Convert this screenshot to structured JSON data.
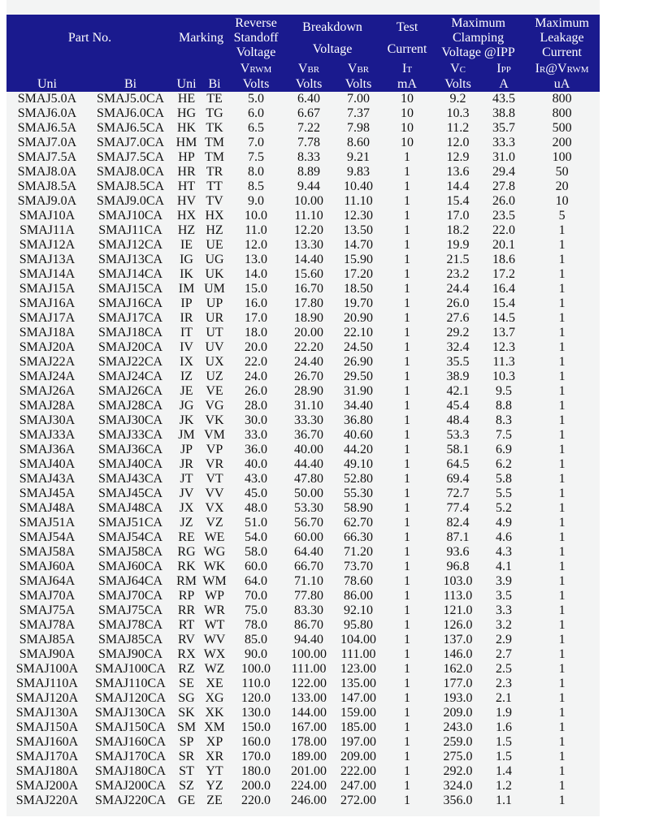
{
  "header": {
    "part_no": "Part No.",
    "marking": "Marking",
    "standoff": [
      "Reverse",
      "Standoff",
      "Voltage"
    ],
    "breakdown": [
      "Breakdown",
      "Voltage"
    ],
    "test": [
      "Test",
      "Current"
    ],
    "clamping": [
      "Maximum",
      "Clamping",
      "Voltage @IPP"
    ],
    "leakage": [
      "Maximum",
      "Leakage",
      "Current"
    ],
    "symbols": {
      "vrwm": {
        "main": "V",
        "sub": "RWM"
      },
      "vbr_min": {
        "main": "V",
        "sub": "BR"
      },
      "vbr_max": {
        "main": "V",
        "sub": "BR"
      },
      "it": {
        "main": "I",
        "sub": "T"
      },
      "vc": {
        "main": "V",
        "sub": "C"
      },
      "ipp": {
        "main": "I",
        "sub": "PP"
      },
      "ir": {
        "main": "I",
        "sub": "R",
        "main2": "@V",
        "sub2": "RWM"
      }
    },
    "units": [
      "Uni",
      "Bi",
      "Uni",
      "Bi",
      "Volts",
      "Volts",
      "Volts",
      "mA",
      "Volts",
      "A",
      "uA"
    ]
  },
  "rows": [
    [
      "SMAJ5.0A",
      "SMAJ5.0CA",
      "HE",
      "TE",
      "5.0",
      "6.40",
      "7.00",
      "10",
      "9.2",
      "43.5",
      "800"
    ],
    [
      "SMAJ6.0A",
      "SMAJ6.0CA",
      "HG",
      "TG",
      "6.0",
      "6.67",
      "7.37",
      "10",
      "10.3",
      "38.8",
      "800"
    ],
    [
      "SMAJ6.5A",
      "SMAJ6.5CA",
      "HK",
      "TK",
      "6.5",
      "7.22",
      "7.98",
      "10",
      "11.2",
      "35.7",
      "500"
    ],
    [
      "SMAJ7.0A",
      "SMAJ7.0CA",
      "HM",
      "TM",
      "7.0",
      "7.78",
      "8.60",
      "10",
      "12.0",
      "33.3",
      "200"
    ],
    [
      "SMAJ7.5A",
      "SMAJ7.5CA",
      "HP",
      "TM",
      "7.5",
      "8.33",
      "9.21",
      "1",
      "12.9",
      "31.0",
      "100"
    ],
    [
      "SMAJ8.0A",
      "SMAJ8.0CA",
      "HR",
      "TR",
      "8.0",
      "8.89",
      "9.83",
      "1",
      "13.6",
      "29.4",
      "50"
    ],
    [
      "SMAJ8.5A",
      "SMAJ8.5CA",
      "HT",
      "TT",
      "8.5",
      "9.44",
      "10.40",
      "1",
      "14.4",
      "27.8",
      "20"
    ],
    [
      "SMAJ9.0A",
      "SMAJ9.0CA",
      "HV",
      "TV",
      "9.0",
      "10.00",
      "11.10",
      "1",
      "15.4",
      "26.0",
      "10"
    ],
    [
      "SMAJ10A",
      "SMAJ10CA",
      "HX",
      "HX",
      "10.0",
      "11.10",
      "12.30",
      "1",
      "17.0",
      "23.5",
      "5"
    ],
    [
      "SMAJ11A",
      "SMAJ11CA",
      "HZ",
      "HZ",
      "11.0",
      "12.20",
      "13.50",
      "1",
      "18.2",
      "22.0",
      "1"
    ],
    [
      "SMAJ12A",
      "SMAJ12CA",
      "IE",
      "UE",
      "12.0",
      "13.30",
      "14.70",
      "1",
      "19.9",
      "20.1",
      "1"
    ],
    [
      "SMAJ13A",
      "SMAJ13CA",
      "IG",
      "UG",
      "13.0",
      "14.40",
      "15.90",
      "1",
      "21.5",
      "18.6",
      "1"
    ],
    [
      "SMAJ14A",
      "SMAJ14CA",
      "IK",
      "UK",
      "14.0",
      "15.60",
      "17.20",
      "1",
      "23.2",
      "17.2",
      "1"
    ],
    [
      "SMAJ15A",
      "SMAJ15CA",
      "IM",
      "UM",
      "15.0",
      "16.70",
      "18.50",
      "1",
      "24.4",
      "16.4",
      "1"
    ],
    [
      "SMAJ16A",
      "SMAJ16CA",
      "IP",
      "UP",
      "16.0",
      "17.80",
      "19.70",
      "1",
      "26.0",
      "15.4",
      "1"
    ],
    [
      "SMAJ17A",
      "SMAJ17CA",
      "IR",
      "UR",
      "17.0",
      "18.90",
      "20.90",
      "1",
      "27.6",
      "14.5",
      "1"
    ],
    [
      "SMAJ18A",
      "SMAJ18CA",
      "IT",
      "UT",
      "18.0",
      "20.00",
      "22.10",
      "1",
      "29.2",
      "13.7",
      "1"
    ],
    [
      "SMAJ20A",
      "SMAJ20CA",
      "IV",
      "UV",
      "20.0",
      "22.20",
      "24.50",
      "1",
      "32.4",
      "12.3",
      "1"
    ],
    [
      "SMAJ22A",
      "SMAJ22CA",
      "IX",
      "UX",
      "22.0",
      "24.40",
      "26.90",
      "1",
      "35.5",
      "11.3",
      "1"
    ],
    [
      "SMAJ24A",
      "SMAJ24CA",
      "IZ",
      "UZ",
      "24.0",
      "26.70",
      "29.50",
      "1",
      "38.9",
      "10.3",
      "1"
    ],
    [
      "SMAJ26A",
      "SMAJ26CA",
      "JE",
      "VE",
      "26.0",
      "28.90",
      "31.90",
      "1",
      "42.1",
      "9.5",
      "1"
    ],
    [
      "SMAJ28A",
      "SMAJ28CA",
      "JG",
      "VG",
      "28.0",
      "31.10",
      "34.40",
      "1",
      "45.4",
      "8.8",
      "1"
    ],
    [
      "SMAJ30A",
      "SMAJ30CA",
      "JK",
      "VK",
      "30.0",
      "33.30",
      "36.80",
      "1",
      "48.4",
      "8.3",
      "1"
    ],
    [
      "SMAJ33A",
      "SMAJ33CA",
      "JM",
      "VM",
      "33.0",
      "36.70",
      "40.60",
      "1",
      "53.3",
      "7.5",
      "1"
    ],
    [
      "SMAJ36A",
      "SMAJ36CA",
      "JP",
      "VP",
      "36.0",
      "40.00",
      "44.20",
      "1",
      "58.1",
      "6.9",
      "1"
    ],
    [
      "SMAJ40A",
      "SMAJ40CA",
      "JR",
      "VR",
      "40.0",
      "44.40",
      "49.10",
      "1",
      "64.5",
      "6.2",
      "1"
    ],
    [
      "SMAJ43A",
      "SMAJ43CA",
      "JT",
      "VT",
      "43.0",
      "47.80",
      "52.80",
      "1",
      "69.4",
      "5.8",
      "1"
    ],
    [
      "SMAJ45A",
      "SMAJ45CA",
      "JV",
      "VV",
      "45.0",
      "50.00",
      "55.30",
      "1",
      "72.7",
      "5.5",
      "1"
    ],
    [
      "SMAJ48A",
      "SMAJ48CA",
      "JX",
      "VX",
      "48.0",
      "53.30",
      "58.90",
      "1",
      "77.4",
      "5.2",
      "1"
    ],
    [
      "SMAJ51A",
      "SMAJ51CA",
      "JZ",
      "VZ",
      "51.0",
      "56.70",
      "62.70",
      "1",
      "82.4",
      "4.9",
      "1"
    ],
    [
      "SMAJ54A",
      "SMAJ54CA",
      "RE",
      "WE",
      "54.0",
      "60.00",
      "66.30",
      "1",
      "87.1",
      "4.6",
      "1"
    ],
    [
      "SMAJ58A",
      "SMAJ58CA",
      "RG",
      "WG",
      "58.0",
      "64.40",
      "71.20",
      "1",
      "93.6",
      "4.3",
      "1"
    ],
    [
      "SMAJ60A",
      "SMAJ60CA",
      "RK",
      "WK",
      "60.0",
      "66.70",
      "73.70",
      "1",
      "96.8",
      "4.1",
      "1"
    ],
    [
      "SMAJ64A",
      "SMAJ64CA",
      "RM",
      "WM",
      "64.0",
      "71.10",
      "78.60",
      "1",
      "103.0",
      "3.9",
      "1"
    ],
    [
      "SMAJ70A",
      "SMAJ70CA",
      "RP",
      "WP",
      "70.0",
      "77.80",
      "86.00",
      "1",
      "113.0",
      "3.5",
      "1"
    ],
    [
      "SMAJ75A",
      "SMAJ75CA",
      "RR",
      "WR",
      "75.0",
      "83.30",
      "92.10",
      "1",
      "121.0",
      "3.3",
      "1"
    ],
    [
      "SMAJ78A",
      "SMAJ78CA",
      "RT",
      "WT",
      "78.0",
      "86.70",
      "95.80",
      "1",
      "126.0",
      "3.2",
      "1"
    ],
    [
      "SMAJ85A",
      "SMAJ85CA",
      "RV",
      "WV",
      "85.0",
      "94.40",
      "104.00",
      "1",
      "137.0",
      "2.9",
      "1"
    ],
    [
      "SMAJ90A",
      "SMAJ90CA",
      "RX",
      "WX",
      "90.0",
      "100.00",
      "111.00",
      "1",
      "146.0",
      "2.7",
      "1"
    ],
    [
      "SMAJ100A",
      "SMAJ100CA",
      "RZ",
      "WZ",
      "100.0",
      "111.00",
      "123.00",
      "1",
      "162.0",
      "2.5",
      "1"
    ],
    [
      "SMAJ110A",
      "SMAJ110CA",
      "SE",
      "XE",
      "110.0",
      "122.00",
      "135.00",
      "1",
      "177.0",
      "2.3",
      "1"
    ],
    [
      "SMAJ120A",
      "SMAJ120CA",
      "SG",
      "XG",
      "120.0",
      "133.00",
      "147.00",
      "1",
      "193.0",
      "2.1",
      "1"
    ],
    [
      "SMAJ130A",
      "SMAJ130CA",
      "SK",
      "XK",
      "130.0",
      "144.00",
      "159.00",
      "1",
      "209.0",
      "1.9",
      "1"
    ],
    [
      "SMAJ150A",
      "SMAJ150CA",
      "SM",
      "XM",
      "150.0",
      "167.00",
      "185.00",
      "1",
      "243.0",
      "1.6",
      "1"
    ],
    [
      "SMAJ160A",
      "SMAJ160CA",
      "SP",
      "XP",
      "160.0",
      "178.00",
      "197.00",
      "1",
      "259.0",
      "1.5",
      "1"
    ],
    [
      "SMAJ170A",
      "SMAJ170CA",
      "SR",
      "XR",
      "170.0",
      "189.00",
      "209.00",
      "1",
      "275.0",
      "1.5",
      "1"
    ],
    [
      "SMAJ180A",
      "SMAJ180CA",
      "ST",
      "YT",
      "180.0",
      "201.00",
      "222.00",
      "1",
      "292.0",
      "1.4",
      "1"
    ],
    [
      "SMAJ200A",
      "SMAJ200CA",
      "SZ",
      "YZ",
      "200.0",
      "224.00",
      "247.00",
      "1",
      "324.0",
      "1.2",
      "1"
    ],
    [
      "SMAJ220A",
      "SMAJ220CA",
      "GE",
      "ZE",
      "220.0",
      "246.00",
      "272.00",
      "1",
      "356.0",
      "1.1",
      "1"
    ]
  ],
  "colors": {
    "header_bg": "#1a1a8e",
    "header_text": "#ffffff",
    "body_bg": "#f3f4f4"
  }
}
